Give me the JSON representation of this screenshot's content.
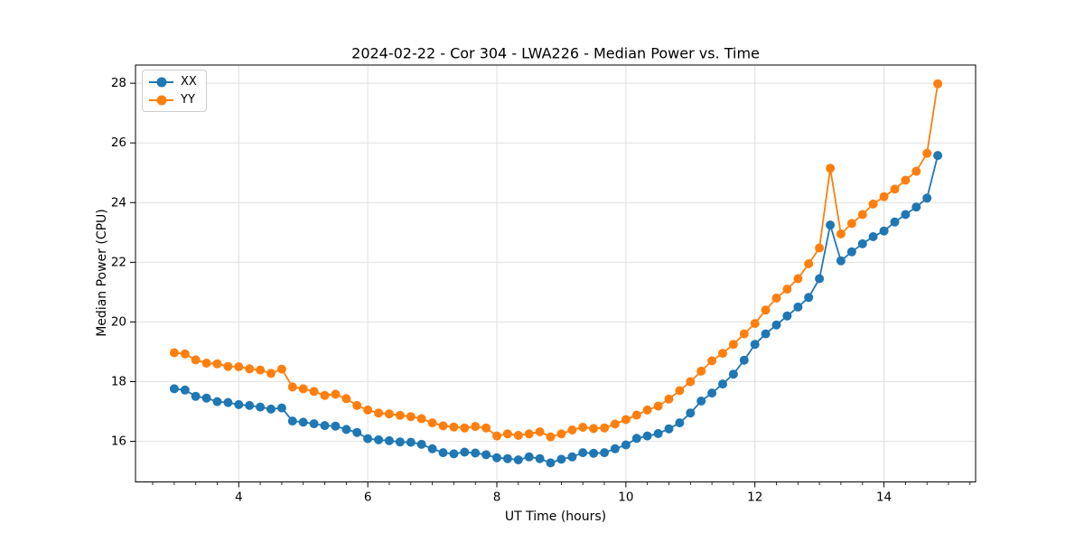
{
  "chart_data": {
    "type": "line",
    "title": "2024-02-22 - Cor 304 - LWA226 - Median Power vs. Time",
    "xlabel": "UT Time (hours)",
    "ylabel": "Median Power (CPU)",
    "xlim": [
      2.4,
      15.42
    ],
    "ylim": [
      14.64,
      28.61
    ],
    "x_major_ticks": [
      4,
      6,
      8,
      10,
      12,
      14
    ],
    "x_minor_tick_step": 0.33333,
    "y_major_ticks": [
      16,
      18,
      20,
      22,
      24,
      26,
      28
    ],
    "grid": true,
    "grid_color": "#e0e0e0",
    "spine_color": "#000000",
    "legend_position": "upper-left",
    "x": [
      3.0,
      3.167,
      3.333,
      3.5,
      3.667,
      3.833,
      4.0,
      4.167,
      4.333,
      4.5,
      4.667,
      4.833,
      5.0,
      5.167,
      5.333,
      5.5,
      5.667,
      5.833,
      6.0,
      6.167,
      6.333,
      6.5,
      6.667,
      6.833,
      7.0,
      7.167,
      7.333,
      7.5,
      7.667,
      7.833,
      8.0,
      8.167,
      8.333,
      8.5,
      8.667,
      8.833,
      9.0,
      9.167,
      9.333,
      9.5,
      9.667,
      9.833,
      10.0,
      10.167,
      10.333,
      10.5,
      10.667,
      10.833,
      11.0,
      11.167,
      11.333,
      11.5,
      11.667,
      11.833,
      12.0,
      12.167,
      12.333,
      12.5,
      12.667,
      12.833,
      13.0,
      13.167,
      13.333,
      13.5,
      13.667,
      13.833,
      14.0,
      14.167,
      14.333,
      14.5,
      14.667,
      14.833
    ],
    "series": [
      {
        "name": "XX",
        "color": "#1f77b4",
        "values": [
          17.76,
          17.72,
          17.51,
          17.45,
          17.33,
          17.3,
          17.23,
          17.2,
          17.15,
          17.08,
          17.12,
          16.68,
          16.64,
          16.59,
          16.53,
          16.51,
          16.4,
          16.3,
          16.09,
          16.05,
          16.02,
          15.98,
          15.97,
          15.9,
          15.75,
          15.62,
          15.58,
          15.64,
          15.61,
          15.55,
          15.45,
          15.42,
          15.38,
          15.48,
          15.42,
          15.28,
          15.4,
          15.48,
          15.62,
          15.6,
          15.62,
          15.75,
          15.88,
          16.1,
          16.18,
          16.26,
          16.42,
          16.62,
          16.95,
          17.35,
          17.62,
          17.92,
          18.25,
          18.72,
          19.25,
          19.6,
          19.9,
          20.2,
          20.5,
          20.82,
          21.45,
          23.25,
          22.05,
          22.35,
          22.62,
          22.86,
          23.05,
          23.35,
          23.6,
          23.85,
          24.15,
          25.58
        ]
      },
      {
        "name": "YY",
        "color": "#ff7f0e",
        "values": [
          18.97,
          18.93,
          18.73,
          18.62,
          18.6,
          18.51,
          18.5,
          18.43,
          18.39,
          18.28,
          18.42,
          17.82,
          17.76,
          17.67,
          17.54,
          17.58,
          17.43,
          17.2,
          17.05,
          16.95,
          16.92,
          16.87,
          16.83,
          16.76,
          16.62,
          16.52,
          16.48,
          16.45,
          16.5,
          16.45,
          16.18,
          16.25,
          16.2,
          16.25,
          16.32,
          16.15,
          16.25,
          16.38,
          16.47,
          16.43,
          16.45,
          16.58,
          16.73,
          16.88,
          17.05,
          17.18,
          17.42,
          17.7,
          18.0,
          18.35,
          18.7,
          18.95,
          19.25,
          19.6,
          19.95,
          20.4,
          20.8,
          21.1,
          21.45,
          21.95,
          22.48,
          25.15,
          22.95,
          23.3,
          23.6,
          23.95,
          24.2,
          24.45,
          24.75,
          25.05,
          25.65,
          27.98
        ]
      }
    ]
  }
}
